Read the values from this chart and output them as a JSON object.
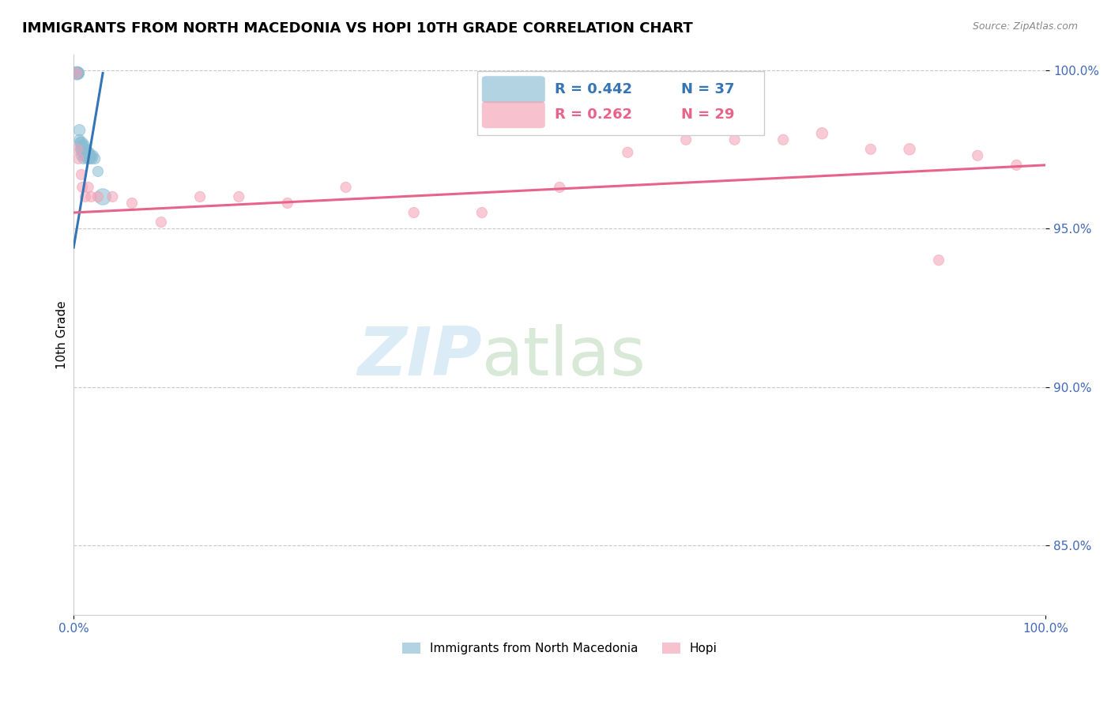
{
  "title": "IMMIGRANTS FROM NORTH MACEDONIA VS HOPI 10TH GRADE CORRELATION CHART",
  "source": "Source: ZipAtlas.com",
  "ylabel": "10th Grade",
  "xlim": [
    0.0,
    1.0
  ],
  "ylim": [
    0.828,
    1.005
  ],
  "yticks": [
    0.85,
    0.9,
    0.95,
    1.0
  ],
  "ytick_labels": [
    "85.0%",
    "90.0%",
    "95.0%",
    "100.0%"
  ],
  "xtick_labels": [
    "0.0%",
    "100.0%"
  ],
  "legend_blue_r": "R = 0.442",
  "legend_blue_n": "N = 37",
  "legend_pink_r": "R = 0.262",
  "legend_pink_n": "N = 29",
  "legend_blue_label": "Immigrants from North Macedonia",
  "legend_pink_label": "Hopi",
  "blue_color": "#89bdd3",
  "pink_color": "#f4a0b5",
  "blue_line_color": "#3575b5",
  "pink_line_color": "#e8638a",
  "tick_color": "#4169b8",
  "blue_scatter_x": [
    0.003,
    0.004,
    0.005,
    0.005,
    0.006,
    0.006,
    0.007,
    0.007,
    0.008,
    0.008,
    0.008,
    0.009,
    0.009,
    0.01,
    0.01,
    0.01,
    0.01,
    0.011,
    0.011,
    0.012,
    0.012,
    0.013,
    0.013,
    0.014,
    0.014,
    0.015,
    0.015,
    0.016,
    0.016,
    0.017,
    0.017,
    0.018,
    0.019,
    0.02,
    0.022,
    0.025,
    0.03
  ],
  "blue_scatter_y": [
    0.999,
    0.999,
    0.999,
    0.999,
    0.981,
    0.978,
    0.977,
    0.975,
    0.977,
    0.975,
    0.973,
    0.976,
    0.974,
    0.976,
    0.975,
    0.974,
    0.972,
    0.975,
    0.974,
    0.975,
    0.973,
    0.975,
    0.974,
    0.974,
    0.972,
    0.974,
    0.973,
    0.974,
    0.972,
    0.973,
    0.972,
    0.973,
    0.972,
    0.973,
    0.972,
    0.968,
    0.96
  ],
  "blue_scatter_sizes": [
    80,
    80,
    60,
    50,
    60,
    50,
    60,
    50,
    70,
    60,
    50,
    60,
    50,
    80,
    70,
    60,
    50,
    60,
    50,
    60,
    50,
    50,
    50,
    50,
    50,
    50,
    50,
    50,
    50,
    50,
    50,
    50,
    50,
    50,
    50,
    50,
    120
  ],
  "pink_scatter_x": [
    0.003,
    0.004,
    0.005,
    0.008,
    0.009,
    0.012,
    0.015,
    0.018,
    0.025,
    0.04,
    0.06,
    0.09,
    0.13,
    0.17,
    0.22,
    0.28,
    0.35,
    0.42,
    0.5,
    0.57,
    0.63,
    0.68,
    0.73,
    0.77,
    0.82,
    0.86,
    0.89,
    0.93,
    0.97
  ],
  "pink_scatter_y": [
    0.999,
    0.975,
    0.972,
    0.967,
    0.963,
    0.96,
    0.963,
    0.96,
    0.96,
    0.96,
    0.958,
    0.952,
    0.96,
    0.96,
    0.958,
    0.963,
    0.955,
    0.955,
    0.963,
    0.974,
    0.978,
    0.978,
    0.978,
    0.98,
    0.975,
    0.975,
    0.94,
    0.973,
    0.97
  ],
  "pink_scatter_sizes": [
    50,
    50,
    50,
    50,
    50,
    50,
    50,
    50,
    50,
    50,
    50,
    50,
    50,
    50,
    50,
    50,
    50,
    50,
    50,
    50,
    50,
    50,
    50,
    60,
    50,
    60,
    50,
    50,
    50
  ],
  "blue_trend_x": [
    0.0,
    0.03
  ],
  "blue_trend_y": [
    0.944,
    0.999
  ],
  "pink_trend_x": [
    0.0,
    1.0
  ],
  "pink_trend_y": [
    0.955,
    0.97
  ]
}
